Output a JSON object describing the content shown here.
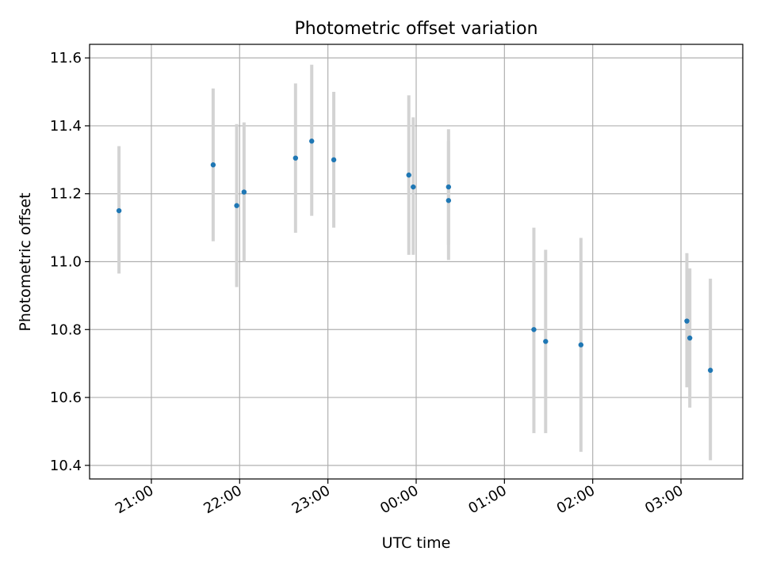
{
  "chart_data": {
    "type": "scatter",
    "title": "Photometric offset variation",
    "xlabel": "UTC time",
    "ylabel": "Photometric offset",
    "x_axis_kind": "time",
    "xlim": [
      "20:18",
      "03:42"
    ],
    "ylim": [
      10.36,
      11.64
    ],
    "grid": true,
    "x_ticks": [
      "21:00",
      "22:00",
      "23:00",
      "00:00",
      "01:00",
      "02:00",
      "03:00"
    ],
    "y_ticks": [
      "10.4",
      "10.6",
      "10.8",
      "11.0",
      "11.2",
      "11.4",
      "11.6"
    ],
    "errorbar_color": "#d3d3d3",
    "marker_color": "#1f77b4",
    "points": [
      {
        "time": "20:38",
        "y": 11.15,
        "err_low": 10.965,
        "err_high": 11.34
      },
      {
        "time": "21:42",
        "y": 11.285,
        "err_low": 11.06,
        "err_high": 11.51
      },
      {
        "time": "21:58",
        "y": 11.165,
        "err_low": 10.925,
        "err_high": 11.405
      },
      {
        "time": "22:03",
        "y": 11.205,
        "err_low": 11.0,
        "err_high": 11.41
      },
      {
        "time": "22:38",
        "y": 11.305,
        "err_low": 11.085,
        "err_high": 11.525
      },
      {
        "time": "22:49",
        "y": 11.355,
        "err_low": 11.135,
        "err_high": 11.58
      },
      {
        "time": "23:04",
        "y": 11.3,
        "err_low": 11.1,
        "err_high": 11.5
      },
      {
        "time": "23:55",
        "y": 11.255,
        "err_low": 11.02,
        "err_high": 11.49
      },
      {
        "time": "23:58",
        "y": 11.22,
        "err_low": 11.02,
        "err_high": 11.425
      },
      {
        "time": "00:22",
        "y": 11.22,
        "err_low": 11.05,
        "err_high": 11.39
      },
      {
        "time": "00:22",
        "y": 11.18,
        "err_low": 11.005,
        "err_high": 11.355
      },
      {
        "time": "01:20",
        "y": 10.8,
        "err_low": 10.495,
        "err_high": 11.1
      },
      {
        "time": "01:28",
        "y": 10.765,
        "err_low": 10.495,
        "err_high": 11.035
      },
      {
        "time": "01:52",
        "y": 10.755,
        "err_low": 10.44,
        "err_high": 11.07
      },
      {
        "time": "03:04",
        "y": 10.825,
        "err_low": 10.63,
        "err_high": 11.025
      },
      {
        "time": "03:06",
        "y": 10.775,
        "err_low": 10.57,
        "err_high": 10.98
      },
      {
        "time": "03:20",
        "y": 10.68,
        "err_low": 10.415,
        "err_high": 10.95
      }
    ]
  }
}
